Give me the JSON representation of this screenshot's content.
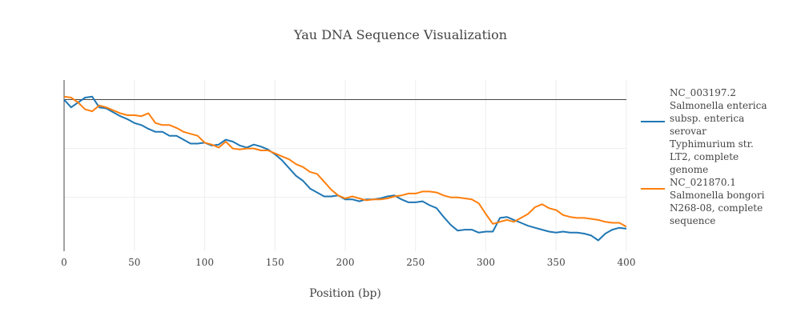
{
  "chart_data": {
    "type": "line",
    "title": "Yau DNA Sequence Visualization",
    "xlabel": "Position (bp)",
    "ylabel": "",
    "xlim": [
      0,
      400
    ],
    "x_ticks": [
      "0",
      "50",
      "100",
      "150",
      "200",
      "250",
      "300",
      "350",
      "400"
    ],
    "y_ticks_shown": false,
    "grid": true,
    "legend_position": "right",
    "series": [
      {
        "name": "NC_003197.2 Salmonella enterica subsp. enterica serovar Typhimurium str. LT2, complete genome",
        "color": "#1f77b4",
        "points": [
          [
            0,
            0.0
          ],
          [
            5,
            -0.8
          ],
          [
            10,
            -0.3
          ],
          [
            15,
            0.2
          ],
          [
            20,
            0.3
          ],
          [
            25,
            -0.8
          ],
          [
            30,
            -0.9
          ],
          [
            35,
            -1.3
          ],
          [
            40,
            -1.7
          ],
          [
            45,
            -2.0
          ],
          [
            50,
            -2.4
          ],
          [
            55,
            -2.6
          ],
          [
            60,
            -3.0
          ],
          [
            65,
            -3.3
          ],
          [
            70,
            -3.3
          ],
          [
            75,
            -3.7
          ],
          [
            80,
            -3.7
          ],
          [
            85,
            -4.1
          ],
          [
            90,
            -4.5
          ],
          [
            95,
            -4.5
          ],
          [
            100,
            -4.4
          ],
          [
            105,
            -4.7
          ],
          [
            110,
            -4.6
          ],
          [
            115,
            -4.1
          ],
          [
            120,
            -4.3
          ],
          [
            125,
            -4.7
          ],
          [
            130,
            -4.9
          ],
          [
            135,
            -4.6
          ],
          [
            140,
            -4.8
          ],
          [
            145,
            -5.1
          ],
          [
            150,
            -5.6
          ],
          [
            155,
            -6.2
          ],
          [
            160,
            -7.0
          ],
          [
            165,
            -7.8
          ],
          [
            170,
            -8.3
          ],
          [
            175,
            -9.1
          ],
          [
            180,
            -9.5
          ],
          [
            185,
            -9.9
          ],
          [
            190,
            -9.9
          ],
          [
            195,
            -9.8
          ],
          [
            200,
            -10.2
          ],
          [
            205,
            -10.2
          ],
          [
            210,
            -10.4
          ],
          [
            215,
            -10.2
          ],
          [
            220,
            -10.2
          ],
          [
            225,
            -10.1
          ],
          [
            230,
            -9.9
          ],
          [
            235,
            -9.8
          ],
          [
            240,
            -10.2
          ],
          [
            245,
            -10.5
          ],
          [
            250,
            -10.5
          ],
          [
            255,
            -10.4
          ],
          [
            260,
            -10.8
          ],
          [
            265,
            -11.1
          ],
          [
            270,
            -12.0
          ],
          [
            275,
            -12.8
          ],
          [
            280,
            -13.4
          ],
          [
            285,
            -13.3
          ],
          [
            290,
            -13.3
          ],
          [
            295,
            -13.6
          ],
          [
            300,
            -13.5
          ],
          [
            305,
            -13.5
          ],
          [
            310,
            -12.1
          ],
          [
            315,
            -12.0
          ],
          [
            320,
            -12.3
          ],
          [
            325,
            -12.6
          ],
          [
            330,
            -12.9
          ],
          [
            335,
            -13.1
          ],
          [
            340,
            -13.3
          ],
          [
            345,
            -13.5
          ],
          [
            350,
            -13.6
          ],
          [
            355,
            -13.5
          ],
          [
            360,
            -13.6
          ],
          [
            365,
            -13.6
          ],
          [
            370,
            -13.7
          ],
          [
            375,
            -13.9
          ],
          [
            380,
            -14.4
          ],
          [
            385,
            -13.7
          ],
          [
            390,
            -13.3
          ],
          [
            395,
            -13.1
          ],
          [
            400,
            -13.2
          ]
        ]
      },
      {
        "name": "NC_021870.1 Salmonella bongori N268-08, complete sequence",
        "color": "#ff7f0e",
        "points": [
          [
            0,
            0.3
          ],
          [
            5,
            0.2
          ],
          [
            10,
            -0.3
          ],
          [
            15,
            -1.0
          ],
          [
            20,
            -1.2
          ],
          [
            25,
            -0.6
          ],
          [
            30,
            -0.8
          ],
          [
            35,
            -1.1
          ],
          [
            40,
            -1.4
          ],
          [
            45,
            -1.6
          ],
          [
            50,
            -1.6
          ],
          [
            55,
            -1.7
          ],
          [
            60,
            -1.4
          ],
          [
            65,
            -2.4
          ],
          [
            70,
            -2.6
          ],
          [
            75,
            -2.6
          ],
          [
            80,
            -2.9
          ],
          [
            85,
            -3.3
          ],
          [
            90,
            -3.5
          ],
          [
            95,
            -3.7
          ],
          [
            100,
            -4.4
          ],
          [
            105,
            -4.6
          ],
          [
            110,
            -4.9
          ],
          [
            115,
            -4.3
          ],
          [
            120,
            -5.0
          ],
          [
            125,
            -5.1
          ],
          [
            130,
            -5.0
          ],
          [
            135,
            -5.0
          ],
          [
            140,
            -5.2
          ],
          [
            145,
            -5.2
          ],
          [
            150,
            -5.5
          ],
          [
            155,
            -5.8
          ],
          [
            160,
            -6.1
          ],
          [
            165,
            -6.6
          ],
          [
            170,
            -6.9
          ],
          [
            175,
            -7.4
          ],
          [
            180,
            -7.6
          ],
          [
            185,
            -8.4
          ],
          [
            190,
            -9.2
          ],
          [
            195,
            -9.8
          ],
          [
            200,
            -10.1
          ],
          [
            205,
            -9.9
          ],
          [
            210,
            -10.1
          ],
          [
            215,
            -10.3
          ],
          [
            220,
            -10.2
          ],
          [
            225,
            -10.2
          ],
          [
            230,
            -10.1
          ],
          [
            235,
            -9.9
          ],
          [
            240,
            -9.8
          ],
          [
            245,
            -9.6
          ],
          [
            250,
            -9.6
          ],
          [
            255,
            -9.4
          ],
          [
            260,
            -9.4
          ],
          [
            265,
            -9.5
          ],
          [
            270,
            -9.8
          ],
          [
            275,
            -10.0
          ],
          [
            280,
            -10.0
          ],
          [
            285,
            -10.1
          ],
          [
            290,
            -10.2
          ],
          [
            295,
            -10.6
          ],
          [
            300,
            -11.7
          ],
          [
            305,
            -12.7
          ],
          [
            310,
            -12.5
          ],
          [
            315,
            -12.3
          ],
          [
            320,
            -12.5
          ],
          [
            325,
            -12.1
          ],
          [
            330,
            -11.7
          ],
          [
            335,
            -11.0
          ],
          [
            340,
            -10.7
          ],
          [
            345,
            -11.1
          ],
          [
            350,
            -11.3
          ],
          [
            355,
            -11.8
          ],
          [
            360,
            -12.0
          ],
          [
            365,
            -12.1
          ],
          [
            370,
            -12.1
          ],
          [
            375,
            -12.2
          ],
          [
            380,
            -12.3
          ],
          [
            385,
            -12.5
          ],
          [
            390,
            -12.6
          ],
          [
            395,
            -12.6
          ],
          [
            400,
            -13.0
          ]
        ]
      }
    ]
  }
}
